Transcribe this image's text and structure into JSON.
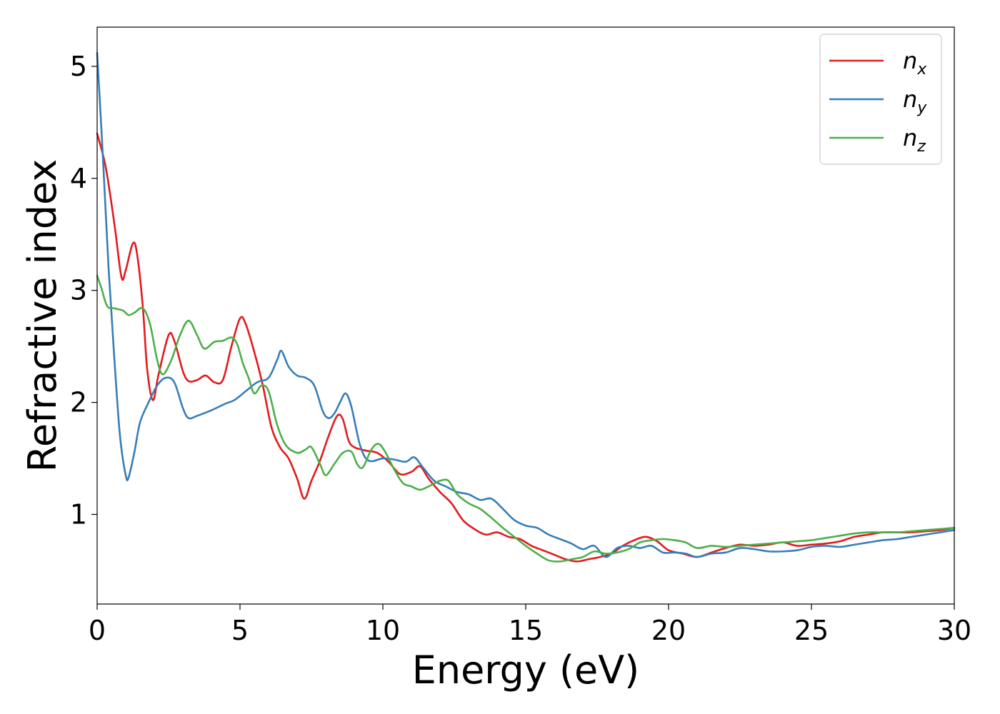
{
  "chart_data": {
    "type": "line",
    "xlabel": "Energy (eV)",
    "ylabel": "Refractive index",
    "xlim": [
      0,
      30
    ],
    "ylim": [
      0.2,
      5.35
    ],
    "xticks": [
      0,
      5,
      10,
      15,
      20,
      25,
      30
    ],
    "xtick_labels": [
      "0",
      "5",
      "10",
      "15",
      "20",
      "25",
      "30"
    ],
    "yticks": [
      1,
      2,
      3,
      4,
      5
    ],
    "ytick_labels": [
      "1",
      "2",
      "3",
      "4",
      "5"
    ],
    "grid": false,
    "legend_position": "top-right",
    "series": [
      {
        "name": "n",
        "subscript": "x",
        "color": "#e41a1c",
        "points": [
          [
            0,
            4.4
          ],
          [
            0.3,
            4.1
          ],
          [
            0.6,
            3.6
          ],
          [
            0.85,
            3.12
          ],
          [
            1.0,
            3.18
          ],
          [
            1.25,
            3.42
          ],
          [
            1.4,
            3.32
          ],
          [
            1.6,
            2.85
          ],
          [
            1.75,
            2.3
          ],
          [
            1.95,
            2.02
          ],
          [
            2.15,
            2.25
          ],
          [
            2.5,
            2.6
          ],
          [
            2.7,
            2.55
          ],
          [
            3.0,
            2.28
          ],
          [
            3.2,
            2.19
          ],
          [
            3.5,
            2.2
          ],
          [
            3.8,
            2.24
          ],
          [
            4.1,
            2.18
          ],
          [
            4.4,
            2.2
          ],
          [
            4.7,
            2.5
          ],
          [
            5.0,
            2.75
          ],
          [
            5.2,
            2.7
          ],
          [
            5.5,
            2.45
          ],
          [
            5.8,
            2.15
          ],
          [
            6.1,
            1.78
          ],
          [
            6.4,
            1.6
          ],
          [
            6.7,
            1.5
          ],
          [
            7.0,
            1.32
          ],
          [
            7.25,
            1.14
          ],
          [
            7.5,
            1.3
          ],
          [
            7.8,
            1.48
          ],
          [
            8.1,
            1.7
          ],
          [
            8.4,
            1.88
          ],
          [
            8.6,
            1.85
          ],
          [
            8.8,
            1.66
          ],
          [
            9.0,
            1.6
          ],
          [
            9.4,
            1.57
          ],
          [
            9.8,
            1.55
          ],
          [
            10.2,
            1.47
          ],
          [
            10.6,
            1.36
          ],
          [
            11.0,
            1.38
          ],
          [
            11.3,
            1.43
          ],
          [
            11.6,
            1.32
          ],
          [
            12.0,
            1.2
          ],
          [
            12.4,
            1.1
          ],
          [
            12.8,
            0.95
          ],
          [
            13.2,
            0.87
          ],
          [
            13.6,
            0.82
          ],
          [
            14.0,
            0.84
          ],
          [
            14.4,
            0.8
          ],
          [
            14.8,
            0.78
          ],
          [
            15.2,
            0.72
          ],
          [
            15.6,
            0.68
          ],
          [
            16.0,
            0.64
          ],
          [
            16.4,
            0.6
          ],
          [
            16.8,
            0.58
          ],
          [
            17.2,
            0.6
          ],
          [
            17.6,
            0.62
          ],
          [
            18.0,
            0.65
          ],
          [
            18.4,
            0.72
          ],
          [
            18.8,
            0.77
          ],
          [
            19.2,
            0.8
          ],
          [
            19.6,
            0.76
          ],
          [
            20.0,
            0.68
          ],
          [
            20.5,
            0.65
          ],
          [
            21.0,
            0.62
          ],
          [
            21.5,
            0.66
          ],
          [
            22.0,
            0.7
          ],
          [
            22.5,
            0.73
          ],
          [
            23.0,
            0.72
          ],
          [
            23.5,
            0.73
          ],
          [
            24.0,
            0.75
          ],
          [
            24.5,
            0.72
          ],
          [
            25.0,
            0.73
          ],
          [
            25.5,
            0.74
          ],
          [
            26.0,
            0.76
          ],
          [
            26.5,
            0.8
          ],
          [
            27.0,
            0.82
          ],
          [
            27.5,
            0.84
          ],
          [
            28.0,
            0.84
          ],
          [
            28.5,
            0.84
          ],
          [
            29.0,
            0.85
          ],
          [
            29.5,
            0.86
          ],
          [
            30.0,
            0.88
          ]
        ]
      },
      {
        "name": "n",
        "subscript": "y",
        "color": "#377eb8",
        "points": [
          [
            0,
            5.12
          ],
          [
            0.2,
            4.2
          ],
          [
            0.4,
            3.2
          ],
          [
            0.6,
            2.4
          ],
          [
            0.8,
            1.7
          ],
          [
            1.0,
            1.35
          ],
          [
            1.1,
            1.33
          ],
          [
            1.3,
            1.55
          ],
          [
            1.5,
            1.82
          ],
          [
            1.8,
            2.0
          ],
          [
            2.1,
            2.15
          ],
          [
            2.4,
            2.22
          ],
          [
            2.7,
            2.18
          ],
          [
            3.0,
            1.95
          ],
          [
            3.2,
            1.86
          ],
          [
            3.5,
            1.88
          ],
          [
            4.0,
            1.93
          ],
          [
            4.5,
            1.99
          ],
          [
            4.8,
            2.02
          ],
          [
            5.2,
            2.1
          ],
          [
            5.6,
            2.18
          ],
          [
            6.0,
            2.22
          ],
          [
            6.3,
            2.38
          ],
          [
            6.45,
            2.46
          ],
          [
            6.7,
            2.32
          ],
          [
            7.0,
            2.24
          ],
          [
            7.3,
            2.22
          ],
          [
            7.6,
            2.15
          ],
          [
            7.9,
            1.92
          ],
          [
            8.1,
            1.86
          ],
          [
            8.3,
            1.9
          ],
          [
            8.5,
            2.0
          ],
          [
            8.7,
            2.08
          ],
          [
            8.9,
            1.96
          ],
          [
            9.2,
            1.62
          ],
          [
            9.5,
            1.48
          ],
          [
            10.0,
            1.5
          ],
          [
            10.4,
            1.49
          ],
          [
            10.8,
            1.47
          ],
          [
            11.1,
            1.51
          ],
          [
            11.4,
            1.42
          ],
          [
            11.8,
            1.3
          ],
          [
            12.2,
            1.25
          ],
          [
            12.6,
            1.2
          ],
          [
            13.0,
            1.18
          ],
          [
            13.4,
            1.13
          ],
          [
            13.8,
            1.14
          ],
          [
            14.2,
            1.05
          ],
          [
            14.6,
            0.95
          ],
          [
            15.0,
            0.9
          ],
          [
            15.4,
            0.88
          ],
          [
            15.8,
            0.82
          ],
          [
            16.2,
            0.78
          ],
          [
            16.6,
            0.74
          ],
          [
            17.0,
            0.69
          ],
          [
            17.4,
            0.72
          ],
          [
            17.8,
            0.62
          ],
          [
            18.2,
            0.7
          ],
          [
            18.6,
            0.72
          ],
          [
            19.0,
            0.7
          ],
          [
            19.4,
            0.72
          ],
          [
            19.8,
            0.66
          ],
          [
            20.2,
            0.66
          ],
          [
            20.6,
            0.65
          ],
          [
            21.0,
            0.62
          ],
          [
            21.5,
            0.65
          ],
          [
            22.0,
            0.66
          ],
          [
            22.5,
            0.7
          ],
          [
            23.0,
            0.69
          ],
          [
            23.5,
            0.67
          ],
          [
            24.0,
            0.67
          ],
          [
            24.5,
            0.68
          ],
          [
            25.0,
            0.71
          ],
          [
            25.5,
            0.72
          ],
          [
            26.0,
            0.71
          ],
          [
            26.5,
            0.73
          ],
          [
            27.0,
            0.75
          ],
          [
            27.5,
            0.77
          ],
          [
            28.0,
            0.78
          ],
          [
            28.5,
            0.8
          ],
          [
            29.0,
            0.82
          ],
          [
            29.5,
            0.84
          ],
          [
            30.0,
            0.86
          ]
        ]
      },
      {
        "name": "n",
        "subscript": "z",
        "color": "#4daf4a",
        "points": [
          [
            0,
            3.13
          ],
          [
            0.15,
            3.02
          ],
          [
            0.35,
            2.86
          ],
          [
            0.6,
            2.84
          ],
          [
            0.9,
            2.82
          ],
          [
            1.1,
            2.78
          ],
          [
            1.3,
            2.8
          ],
          [
            1.6,
            2.84
          ],
          [
            1.85,
            2.7
          ],
          [
            2.1,
            2.38
          ],
          [
            2.3,
            2.25
          ],
          [
            2.6,
            2.38
          ],
          [
            2.9,
            2.6
          ],
          [
            3.2,
            2.73
          ],
          [
            3.5,
            2.6
          ],
          [
            3.75,
            2.48
          ],
          [
            4.1,
            2.54
          ],
          [
            4.4,
            2.55
          ],
          [
            4.7,
            2.58
          ],
          [
            4.9,
            2.52
          ],
          [
            5.1,
            2.35
          ],
          [
            5.3,
            2.22
          ],
          [
            5.5,
            2.08
          ],
          [
            5.75,
            2.15
          ],
          [
            6.0,
            2.1
          ],
          [
            6.3,
            1.8
          ],
          [
            6.6,
            1.62
          ],
          [
            7.0,
            1.55
          ],
          [
            7.3,
            1.58
          ],
          [
            7.5,
            1.6
          ],
          [
            7.8,
            1.45
          ],
          [
            8.0,
            1.35
          ],
          [
            8.3,
            1.45
          ],
          [
            8.6,
            1.55
          ],
          [
            8.9,
            1.56
          ],
          [
            9.1,
            1.45
          ],
          [
            9.3,
            1.42
          ],
          [
            9.6,
            1.58
          ],
          [
            9.85,
            1.63
          ],
          [
            10.1,
            1.55
          ],
          [
            10.4,
            1.4
          ],
          [
            10.7,
            1.28
          ],
          [
            11.0,
            1.25
          ],
          [
            11.3,
            1.22
          ],
          [
            11.6,
            1.25
          ],
          [
            12.0,
            1.3
          ],
          [
            12.3,
            1.3
          ],
          [
            12.6,
            1.18
          ],
          [
            13.0,
            1.1
          ],
          [
            13.4,
            1.05
          ],
          [
            13.8,
            0.97
          ],
          [
            14.2,
            0.88
          ],
          [
            14.6,
            0.8
          ],
          [
            15.0,
            0.72
          ],
          [
            15.4,
            0.65
          ],
          [
            15.8,
            0.59
          ],
          [
            16.2,
            0.58
          ],
          [
            16.6,
            0.6
          ],
          [
            17.0,
            0.62
          ],
          [
            17.4,
            0.67
          ],
          [
            17.8,
            0.65
          ],
          [
            18.2,
            0.66
          ],
          [
            18.6,
            0.69
          ],
          [
            19.0,
            0.75
          ],
          [
            19.4,
            0.77
          ],
          [
            19.8,
            0.78
          ],
          [
            20.2,
            0.77
          ],
          [
            20.6,
            0.75
          ],
          [
            21.0,
            0.7
          ],
          [
            21.5,
            0.72
          ],
          [
            22.0,
            0.71
          ],
          [
            22.5,
            0.72
          ],
          [
            23.0,
            0.73
          ],
          [
            23.5,
            0.74
          ],
          [
            24.0,
            0.75
          ],
          [
            24.5,
            0.76
          ],
          [
            25.0,
            0.77
          ],
          [
            25.5,
            0.79
          ],
          [
            26.0,
            0.81
          ],
          [
            26.5,
            0.83
          ],
          [
            27.0,
            0.84
          ],
          [
            27.5,
            0.84
          ],
          [
            28.0,
            0.84
          ],
          [
            28.5,
            0.85
          ],
          [
            29.0,
            0.86
          ],
          [
            29.5,
            0.87
          ],
          [
            30.0,
            0.88
          ]
        ]
      }
    ]
  }
}
